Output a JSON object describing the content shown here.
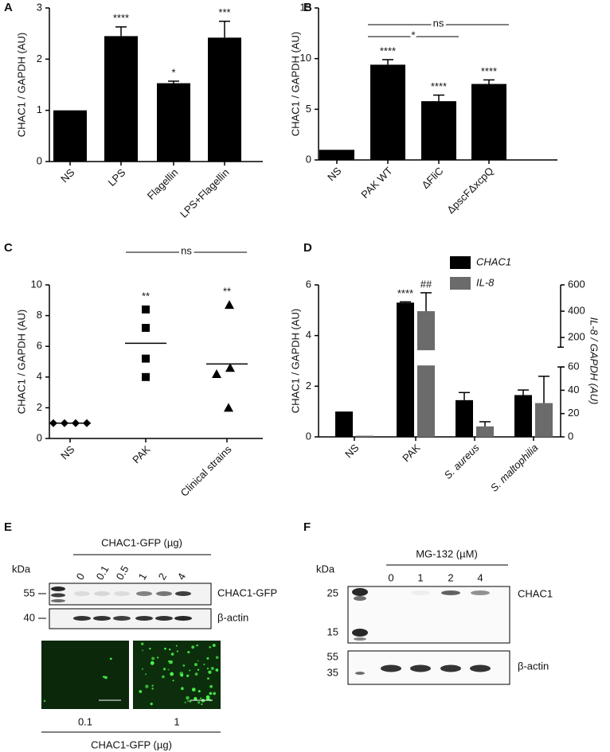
{
  "chart_data": [
    {
      "panel": "A",
      "type": "bar",
      "ylabel": "CHAC1 / GAPDH (AU)",
      "categories": [
        "NS",
        "LPS",
        "Flagellin",
        "LPS+Flagellin"
      ],
      "values": [
        1,
        2.45,
        1.53,
        2.42
      ],
      "errors": [
        null,
        0.18,
        0.04,
        0.32
      ],
      "significance": [
        null,
        "****",
        "*",
        "***"
      ],
      "color": "#000000",
      "ylim": [
        0,
        3
      ],
      "yticks": [
        0,
        1,
        2,
        3
      ]
    },
    {
      "panel": "B",
      "type": "bar",
      "ylabel": "CHAC1 / GAPDH (AU)",
      "categories": [
        "NS",
        "PAK WT",
        "ΔFliC",
        "ΔpscFΔxcpQ"
      ],
      "values": [
        1,
        9.4,
        5.8,
        7.5
      ],
      "errors": [
        null,
        0.5,
        0.6,
        0.4
      ],
      "significance": [
        null,
        "****",
        "****",
        "****"
      ],
      "color": "#000000",
      "comparisons": [
        {
          "from": 1,
          "to": 3,
          "label": "ns"
        },
        {
          "from": 1,
          "to": 2,
          "label": "*"
        }
      ],
      "ylim": [
        0,
        15
      ],
      "yticks": [
        0,
        5,
        10,
        15
      ]
    },
    {
      "panel": "C",
      "type": "dot",
      "ylabel": "CHAC1 / GAPDH (AU)",
      "categories": [
        "NS",
        "PAK",
        "Clinical strains"
      ],
      "values": [
        [
          1,
          1,
          1,
          1
        ],
        [
          8.4,
          7.2,
          5.2,
          4.0
        ],
        [
          8.7,
          4.6,
          4.2,
          2.0
        ]
      ],
      "means": [
        1,
        6.2,
        4.85
      ],
      "markers": [
        "diamond",
        "square",
        "triangle"
      ],
      "significance": [
        null,
        "**",
        "**"
      ],
      "color": "#000000",
      "comparisons": [
        {
          "from": 1,
          "to": 2,
          "label": "ns"
        }
      ],
      "ylim": [
        0,
        10
      ],
      "yticks": [
        0,
        2,
        4,
        6,
        8,
        10
      ]
    },
    {
      "panel": "D",
      "type": "grouped-bar",
      "ylabel": "CHAC1 / GAPDH (AU)",
      "y2label": "IL-8 / GAPDH  (AU)",
      "categories": [
        "NS",
        "PAK",
        "S. aureus",
        "S. maltophilia"
      ],
      "series": [
        {
          "name": "CHAC1",
          "color": "#000000",
          "values": [
            1,
            5.3,
            1.45,
            1.65
          ],
          "errors": [
            null,
            0.03,
            0.3,
            0.2
          ],
          "annotations": [
            null,
            "****",
            null,
            null
          ]
        },
        {
          "name": "IL-8",
          "color": "#6b6b6b",
          "axis": "y2",
          "values": [
            1,
            400,
            9,
            29
          ],
          "errors": [
            null,
            140,
            4,
            23
          ],
          "annotations": [
            null,
            "##",
            null,
            null
          ]
        }
      ],
      "ylim": [
        0,
        6
      ],
      "yticks": [
        0,
        2,
        4,
        6
      ],
      "y2_segments": [
        {
          "ylim": [
            0,
            60
          ],
          "yticks": [
            0,
            20,
            40,
            60
          ]
        },
        {
          "ylim": [
            200,
            600
          ],
          "yticks": [
            200,
            400,
            600
          ]
        }
      ]
    }
  ],
  "blots": [
    {
      "panel": "E",
      "title": "CHAC1-GFP (µg)",
      "unit_label": "kDa",
      "lanes": [
        0,
        0.1,
        0.5,
        1,
        2,
        4
      ],
      "markers": [
        55,
        40
      ],
      "bands": [
        "CHAC1-GFP",
        "β-actin"
      ],
      "images": [
        0.1,
        1
      ],
      "image_caption": "CHAC1-GFP (µg)"
    },
    {
      "panel": "F",
      "title": "MG-132 (µM)",
      "unit_label": "kDa",
      "lanes": [
        0,
        1,
        2,
        4
      ],
      "markers": [
        25,
        15,
        55,
        35
      ],
      "bands": [
        "CHAC1",
        "β-actin"
      ]
    }
  ]
}
